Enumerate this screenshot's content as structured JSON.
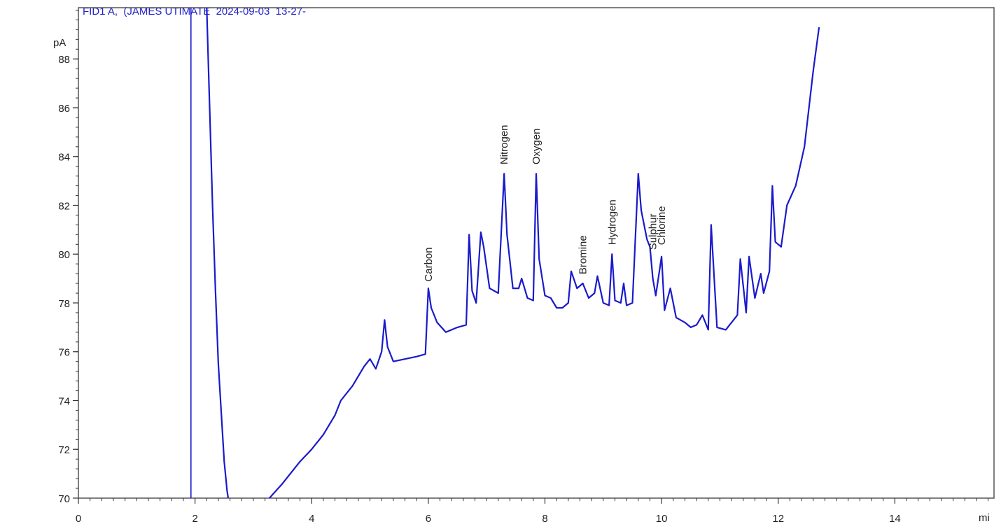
{
  "chart_data": {
    "type": "line",
    "title": "FID1 A,  (JAMES UTIMATE  2024-09-03  13-27-",
    "ylabel": "pA",
    "xlabel": "mi",
    "xlim": [
      0,
      15.7
    ],
    "ylim": [
      70,
      90.1
    ],
    "x_ticks": [
      0,
      2,
      4,
      6,
      8,
      10,
      12,
      14
    ],
    "y_ticks": [
      70,
      72,
      74,
      76,
      78,
      80,
      82,
      84,
      86,
      88
    ],
    "line_color": "#1a1acc",
    "marker_line": {
      "x": 1.93
    },
    "series": [
      {
        "x": [
          2.2,
          2.25,
          2.3,
          2.35,
          2.4,
          2.45,
          2.5,
          2.55,
          2.6,
          2.8,
          3.0,
          3.2,
          3.5,
          3.8,
          4.0,
          4.2,
          4.4,
          4.5,
          4.7,
          4.9,
          5.0,
          5.1,
          5.2,
          5.25,
          5.3,
          5.4,
          5.6,
          5.8,
          5.95,
          6.0,
          6.05,
          6.15,
          6.3,
          6.5,
          6.65,
          6.7,
          6.75,
          6.82,
          6.9,
          6.95,
          7.05,
          7.2,
          7.3,
          7.35,
          7.45,
          7.55,
          7.6,
          7.7,
          7.8,
          7.85,
          7.9,
          8.0,
          8.1,
          8.2,
          8.3,
          8.4,
          8.45,
          8.55,
          8.65,
          8.75,
          8.85,
          8.9,
          9.0,
          9.1,
          9.15,
          9.2,
          9.3,
          9.35,
          9.4,
          9.5,
          9.6,
          9.65,
          9.75,
          9.8,
          9.85,
          9.9,
          10.0,
          10.05,
          10.15,
          10.25,
          10.4,
          10.5,
          10.6,
          10.7,
          10.8,
          10.85,
          10.95,
          11.1,
          11.3,
          11.35,
          11.45,
          11.5,
          11.6,
          11.7,
          11.75,
          11.85,
          11.9,
          11.95,
          12.05,
          12.15,
          12.3,
          12.45,
          12.6,
          12.7
        ],
        "y": [
          90.1,
          86,
          82,
          78.5,
          75.5,
          73.5,
          71.5,
          70.3,
          69.5,
          69.0,
          69.3,
          69.8,
          70.6,
          71.5,
          72.0,
          72.6,
          73.4,
          74.0,
          74.6,
          75.4,
          75.7,
          75.3,
          76.0,
          77.3,
          76.2,
          75.6,
          75.7,
          75.8,
          75.9,
          78.6,
          77.8,
          77.2,
          76.8,
          77.0,
          77.1,
          80.8,
          78.5,
          78.0,
          80.9,
          80.3,
          78.6,
          78.4,
          83.3,
          80.8,
          78.6,
          78.6,
          79.0,
          78.2,
          78.1,
          83.3,
          79.8,
          78.3,
          78.2,
          77.8,
          77.8,
          78.0,
          79.3,
          78.6,
          78.8,
          78.2,
          78.4,
          79.1,
          78.0,
          77.9,
          80.0,
          78.1,
          78.0,
          78.8,
          77.9,
          78.0,
          83.3,
          81.8,
          80.6,
          80.3,
          79.0,
          78.3,
          79.9,
          77.7,
          78.6,
          77.4,
          77.2,
          77.0,
          77.1,
          77.5,
          76.9,
          81.2,
          77.0,
          76.9,
          77.5,
          79.8,
          77.6,
          79.9,
          78.2,
          79.2,
          78.4,
          79.3,
          82.8,
          80.5,
          80.3,
          82.0,
          82.8,
          84.4,
          87.5,
          89.3
        ]
      }
    ],
    "annotations": [
      {
        "label": "Carbon",
        "x": 6.0,
        "y": 78.7
      },
      {
        "label": "Nitrogen",
        "x": 7.3,
        "y": 83.5
      },
      {
        "label": "Oxygen",
        "x": 7.85,
        "y": 83.5
      },
      {
        "label": "Bromine",
        "x": 8.65,
        "y": 79.0
      },
      {
        "label": "Hydrogen",
        "x": 9.15,
        "y": 80.2
      },
      {
        "label": "Sulphur",
        "x": 9.85,
        "y": 80.0
      },
      {
        "label": "Chlorine",
        "x": 10.0,
        "y": 80.2
      }
    ]
  }
}
